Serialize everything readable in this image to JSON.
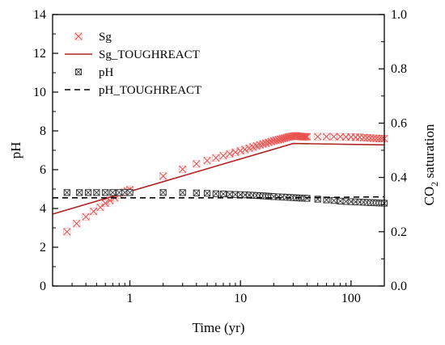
{
  "chart_data": {
    "type": "scatter",
    "title": "",
    "xlabel": "Time (yr)",
    "x_scale": "log",
    "xlim": [
      0.2,
      200
    ],
    "x_ticks": [
      "1",
      "10",
      "100"
    ],
    "y_left": {
      "label": "pH",
      "lim": [
        0,
        14
      ],
      "ticks": [
        "0",
        "2",
        "4",
        "6",
        "8",
        "10",
        "12",
        "14"
      ]
    },
    "y_right": {
      "label_main": "CO",
      "label_sub": "2",
      "label_rest": " saturation",
      "lim": [
        0.0,
        1.0
      ],
      "ticks": [
        "0.0",
        "0.2",
        "0.4",
        "0.6",
        "0.8",
        "1.0"
      ]
    },
    "legend_position": "top-left",
    "series": [
      {
        "name": "Sg",
        "kind": "markers",
        "marker": "x-circle",
        "axis": "right",
        "color": "#e8514f",
        "x": [
          0.27,
          0.33,
          0.4,
          0.47,
          0.54,
          0.6,
          0.66,
          0.73,
          0.8,
          0.88,
          0.95,
          1.0,
          2,
          3,
          4,
          5,
          6,
          7,
          8,
          9,
          10,
          11,
          12,
          13,
          14,
          15,
          16,
          17,
          18,
          19,
          20,
          21,
          22,
          23,
          24,
          25,
          26,
          27,
          28,
          29,
          30,
          31,
          32,
          33,
          34,
          35,
          36,
          37,
          38,
          39,
          40,
          50,
          60,
          70,
          80,
          90,
          100,
          110,
          120,
          130,
          140,
          150,
          160,
          170,
          180,
          190,
          200
        ],
        "values": [
          0.2,
          0.23,
          0.255,
          0.275,
          0.29,
          0.305,
          0.315,
          0.325,
          0.335,
          0.345,
          0.35,
          0.355,
          0.405,
          0.43,
          0.45,
          0.462,
          0.472,
          0.48,
          0.487,
          0.493,
          0.498,
          0.503,
          0.508,
          0.512,
          0.516,
          0.52,
          0.523,
          0.526,
          0.529,
          0.532,
          0.535,
          0.537,
          0.539,
          0.541,
          0.543,
          0.545,
          0.547,
          0.549,
          0.55,
          0.551,
          0.552,
          0.553,
          0.553,
          0.552,
          0.551,
          0.551,
          0.55,
          0.55,
          0.55,
          0.55,
          0.55,
          0.55,
          0.55,
          0.55,
          0.55,
          0.549,
          0.549,
          0.548,
          0.548,
          0.547,
          0.546,
          0.545,
          0.544,
          0.544,
          0.543,
          0.543,
          0.543
        ]
      },
      {
        "name": "Sg_TOUGHREACT",
        "kind": "line",
        "style": "solid",
        "axis": "right",
        "color": "#b22222",
        "x": [
          0.2,
          30,
          200
        ],
        "values": [
          0.265,
          0.525,
          0.52
        ]
      },
      {
        "name": "pH",
        "kind": "markers",
        "marker": "x-square",
        "axis": "left",
        "color": "#333333",
        "x": [
          0.27,
          0.35,
          0.42,
          0.5,
          0.6,
          0.7,
          0.8,
          0.9,
          1.0,
          2,
          3,
          4,
          5,
          6,
          7,
          8,
          9,
          10,
          11,
          12,
          13,
          14,
          15,
          16,
          17,
          18,
          19,
          20,
          22,
          24,
          26,
          28,
          30,
          32,
          34,
          36,
          38,
          40,
          50,
          60,
          70,
          80,
          90,
          100,
          110,
          120,
          130,
          140,
          150,
          160,
          170,
          180,
          190,
          200
        ],
        "values": [
          4.82,
          4.82,
          4.82,
          4.82,
          4.82,
          4.82,
          4.82,
          4.82,
          4.82,
          4.82,
          4.82,
          4.8,
          4.78,
          4.76,
          4.75,
          4.73,
          4.72,
          4.71,
          4.7,
          4.69,
          4.68,
          4.67,
          4.66,
          4.65,
          4.64,
          4.63,
          4.62,
          4.61,
          4.6,
          4.59,
          4.58,
          4.57,
          4.56,
          4.55,
          4.54,
          4.53,
          4.53,
          4.52,
          4.48,
          4.44,
          4.41,
          4.38,
          4.36,
          4.35,
          4.34,
          4.33,
          4.32,
          4.31,
          4.3,
          4.3,
          4.29,
          4.28,
          4.28,
          4.27
        ]
      },
      {
        "name": "pH_TOUGHREACT",
        "kind": "line",
        "style": "dashed",
        "axis": "left",
        "color": "#000000",
        "x": [
          0.2,
          30,
          200
        ],
        "values": [
          4.55,
          4.55,
          4.6
        ]
      }
    ]
  }
}
